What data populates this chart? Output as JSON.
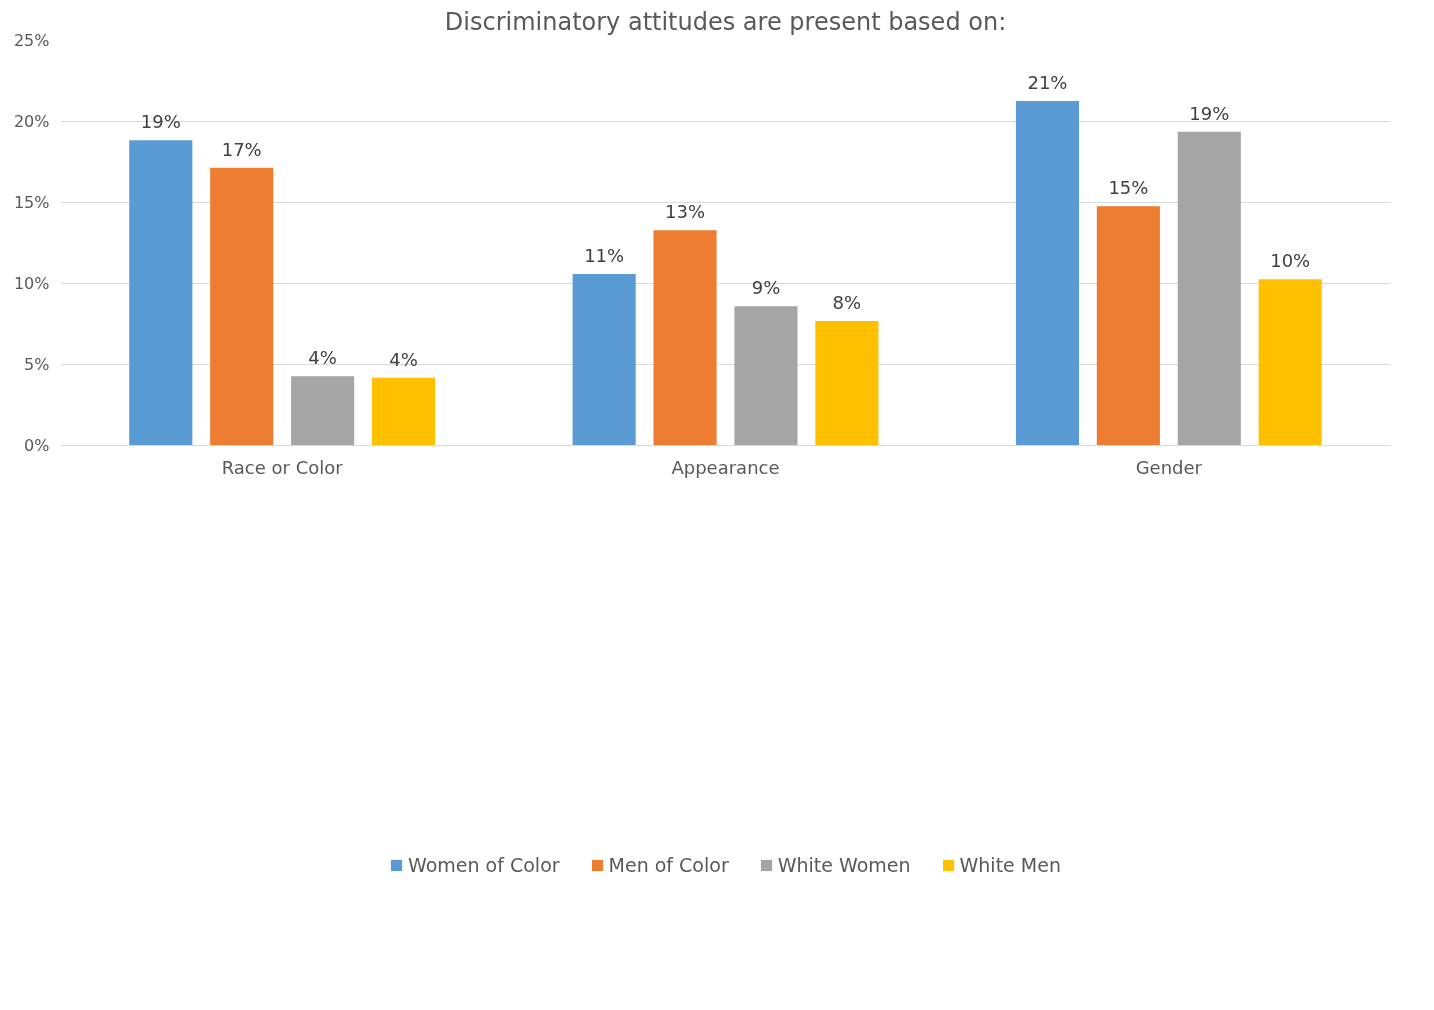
{
  "chart_data": {
    "type": "bar",
    "title": "Discriminatory attitudes are present based on:",
    "categories": [
      "Race or Color",
      "Appearance",
      "Gender"
    ],
    "series": [
      {
        "name": "Women of Color",
        "color": "#5b9bd5",
        "values": [
          18.85,
          10.59,
          21.27
        ],
        "value_labels": [
          "19%",
          "11%",
          "21%"
        ]
      },
      {
        "name": "Men of Color",
        "color": "#ed7d31",
        "values": [
          17.15,
          13.29,
          14.77
        ],
        "value_labels": [
          "17%",
          "13%",
          "15%"
        ]
      },
      {
        "name": "White Women",
        "color": "#a5a5a5",
        "values": [
          4.28,
          8.59,
          19.37
        ],
        "value_labels": [
          "4%",
          "9%",
          "19%"
        ]
      },
      {
        "name": "White Men",
        "color": "#ffc000",
        "values": [
          4.18,
          7.69,
          10.26
        ],
        "value_labels": [
          "4%",
          "8%",
          "10%"
        ]
      }
    ],
    "ylim": [
      0,
      25
    ],
    "yticks": [
      {
        "value": 0,
        "label": "0%"
      },
      {
        "value": 5,
        "label": "5%"
      },
      {
        "value": 10,
        "label": "10%"
      },
      {
        "value": 15,
        "label": "15%"
      },
      {
        "value": 20,
        "label": "20%"
      },
      {
        "value": 25,
        "label": "25%"
      }
    ],
    "grid": "y",
    "legend": "bottom"
  }
}
